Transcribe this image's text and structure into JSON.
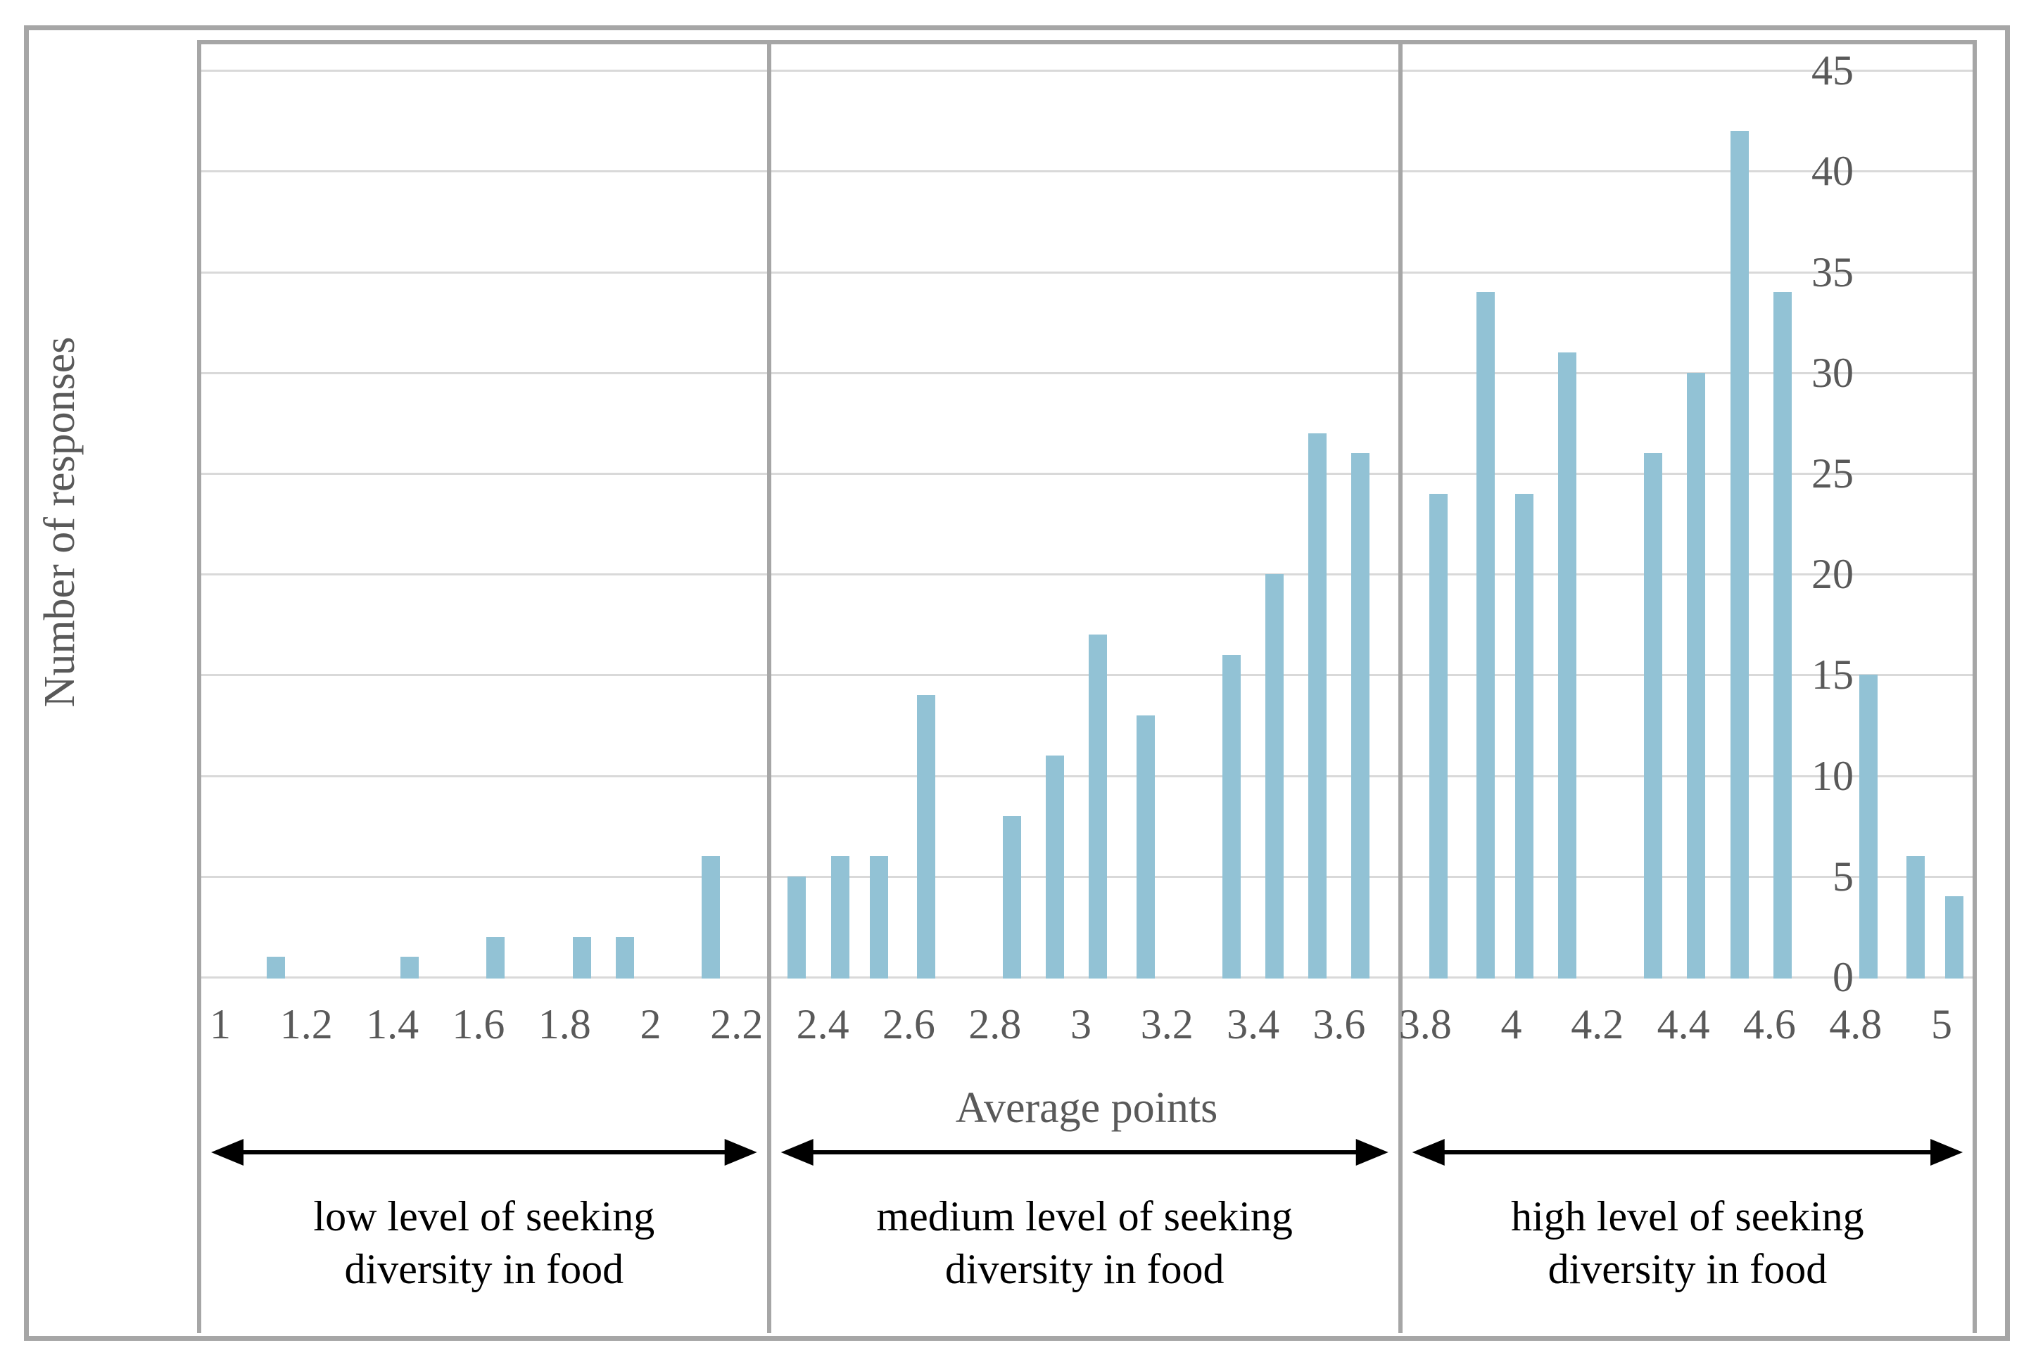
{
  "chart_data": {
    "type": "bar",
    "title": "",
    "xlabel": "Average points",
    "ylabel": "Number of responses",
    "x_ticks": [
      "1",
      "1.2",
      "1.4",
      "1.6",
      "1.8",
      "2",
      "2.2",
      "2.4",
      "2.6",
      "2.8",
      "3",
      "3.2",
      "3.4",
      "3.6",
      "3.8",
      "4",
      "4.2",
      "4.4",
      "4.6",
      "4.8",
      "5"
    ],
    "x_tick_values": [
      1,
      1.2,
      1.4,
      1.6,
      1.8,
      2,
      2.2,
      2.4,
      2.6,
      2.8,
      3,
      3.2,
      3.4,
      3.6,
      3.8,
      4,
      4.2,
      4.4,
      4.6,
      4.8,
      5
    ],
    "y_ticks": [
      0,
      5,
      10,
      15,
      20,
      25,
      30,
      35,
      40,
      45
    ],
    "ylim": [
      0,
      46.4
    ],
    "xlim": [
      0.951,
      5.077
    ],
    "grid": "horizontal",
    "legend": "none",
    "points": [
      {
        "x": 1.13,
        "count": 1
      },
      {
        "x": 1.44,
        "count": 1
      },
      {
        "x": 1.64,
        "count": 2
      },
      {
        "x": 1.84,
        "count": 2
      },
      {
        "x": 1.94,
        "count": 2
      },
      {
        "x": 2.14,
        "count": 6
      },
      {
        "x": 2.34,
        "count": 5
      },
      {
        "x": 2.44,
        "count": 6
      },
      {
        "x": 2.53,
        "count": 6
      },
      {
        "x": 2.64,
        "count": 14
      },
      {
        "x": 2.84,
        "count": 8
      },
      {
        "x": 2.94,
        "count": 11
      },
      {
        "x": 3.04,
        "count": 17
      },
      {
        "x": 3.15,
        "count": 13
      },
      {
        "x": 3.35,
        "count": 16
      },
      {
        "x": 3.45,
        "count": 20
      },
      {
        "x": 3.55,
        "count": 27
      },
      {
        "x": 3.65,
        "count": 26
      },
      {
        "x": 3.83,
        "count": 24
      },
      {
        "x": 3.94,
        "count": 34
      },
      {
        "x": 4.03,
        "count": 24
      },
      {
        "x": 4.13,
        "count": 31
      },
      {
        "x": 4.33,
        "count": 26
      },
      {
        "x": 4.43,
        "count": 30
      },
      {
        "x": 4.53,
        "count": 42
      },
      {
        "x": 4.63,
        "count": 34
      },
      {
        "x": 4.83,
        "count": 15
      },
      {
        "x": 4.94,
        "count": 6
      },
      {
        "x": 5.03,
        "count": 4
      }
    ],
    "sections": [
      {
        "id": "low",
        "label_line1": "low level of seeking",
        "label_line2": "diversity in food",
        "x_start": 0.951,
        "x_end": 2.275
      },
      {
        "id": "medium",
        "label_line1": "medium level of seeking",
        "label_line2": "diversity in food",
        "x_start": 2.275,
        "x_end": 3.742
      },
      {
        "id": "high",
        "label_line1": "high level of seeking",
        "label_line2": "diversity in food",
        "x_start": 3.742,
        "x_end": 5.077
      }
    ]
  },
  "colors": {
    "bar": "#92c2d5",
    "gridline": "#d9d9d9",
    "border": "#a6a6a6",
    "tick_text": "#595959",
    "axis_title_text": "#595959",
    "annotation_text": "#000000",
    "arrow": "#000000",
    "background": "#ffffff"
  }
}
